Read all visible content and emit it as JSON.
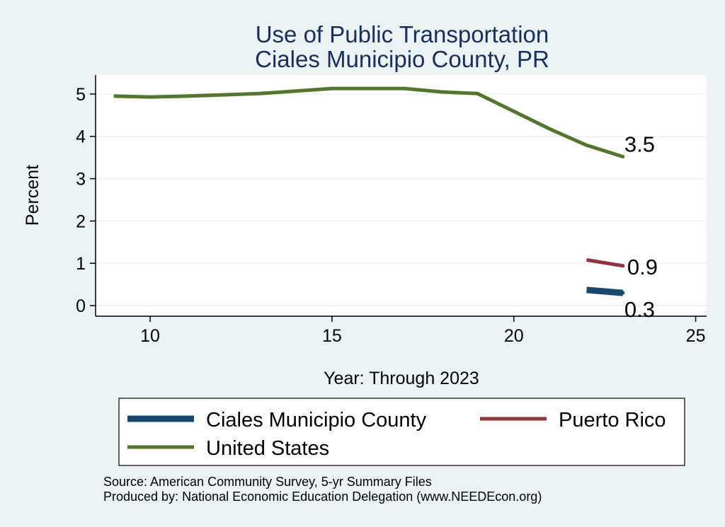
{
  "chart_data": {
    "type": "line",
    "title": [
      "Use of Public Transportation",
      "Ciales Municipio County, PR"
    ],
    "xlabel": "Year: Through 2023",
    "ylabel": "Percent",
    "xlim": [
      8.5,
      25.3
    ],
    "ylim": [
      -0.25,
      5.45
    ],
    "xticks": [
      10,
      15,
      20,
      25
    ],
    "yticks": [
      0,
      1,
      2,
      3,
      4,
      5
    ],
    "grid": true,
    "series": [
      {
        "name": "Ciales Municipio County",
        "color": "#1a476f",
        "width": "thick",
        "x": [
          22,
          23
        ],
        "values": [
          0.37,
          0.3
        ],
        "end_label": "0.3"
      },
      {
        "name": "Puerto Rico",
        "color": "#90353b",
        "width": "medium",
        "x": [
          22,
          23
        ],
        "values": [
          1.08,
          0.94
        ],
        "end_label": "0.9"
      },
      {
        "name": "United States",
        "color": "#55752f",
        "width": "medium",
        "x": [
          9,
          10,
          11,
          12,
          13,
          14,
          15,
          16,
          17,
          18,
          19,
          20,
          21,
          22,
          23
        ],
        "values": [
          4.95,
          4.93,
          4.95,
          4.98,
          5.01,
          5.07,
          5.13,
          5.13,
          5.13,
          5.05,
          5.01,
          4.59,
          4.17,
          3.79,
          3.52
        ],
        "end_label": "3.5"
      }
    ],
    "legend": {
      "placement": "bottom",
      "order": [
        "Ciales Municipio County",
        "Puerto Rico",
        "United States"
      ]
    }
  },
  "footer": {
    "source": "Source: American Community Survey, 5-yr Summary Files",
    "produced": "Produced by: National Economic Education Delegation (www.NEEDEcon.org)"
  }
}
